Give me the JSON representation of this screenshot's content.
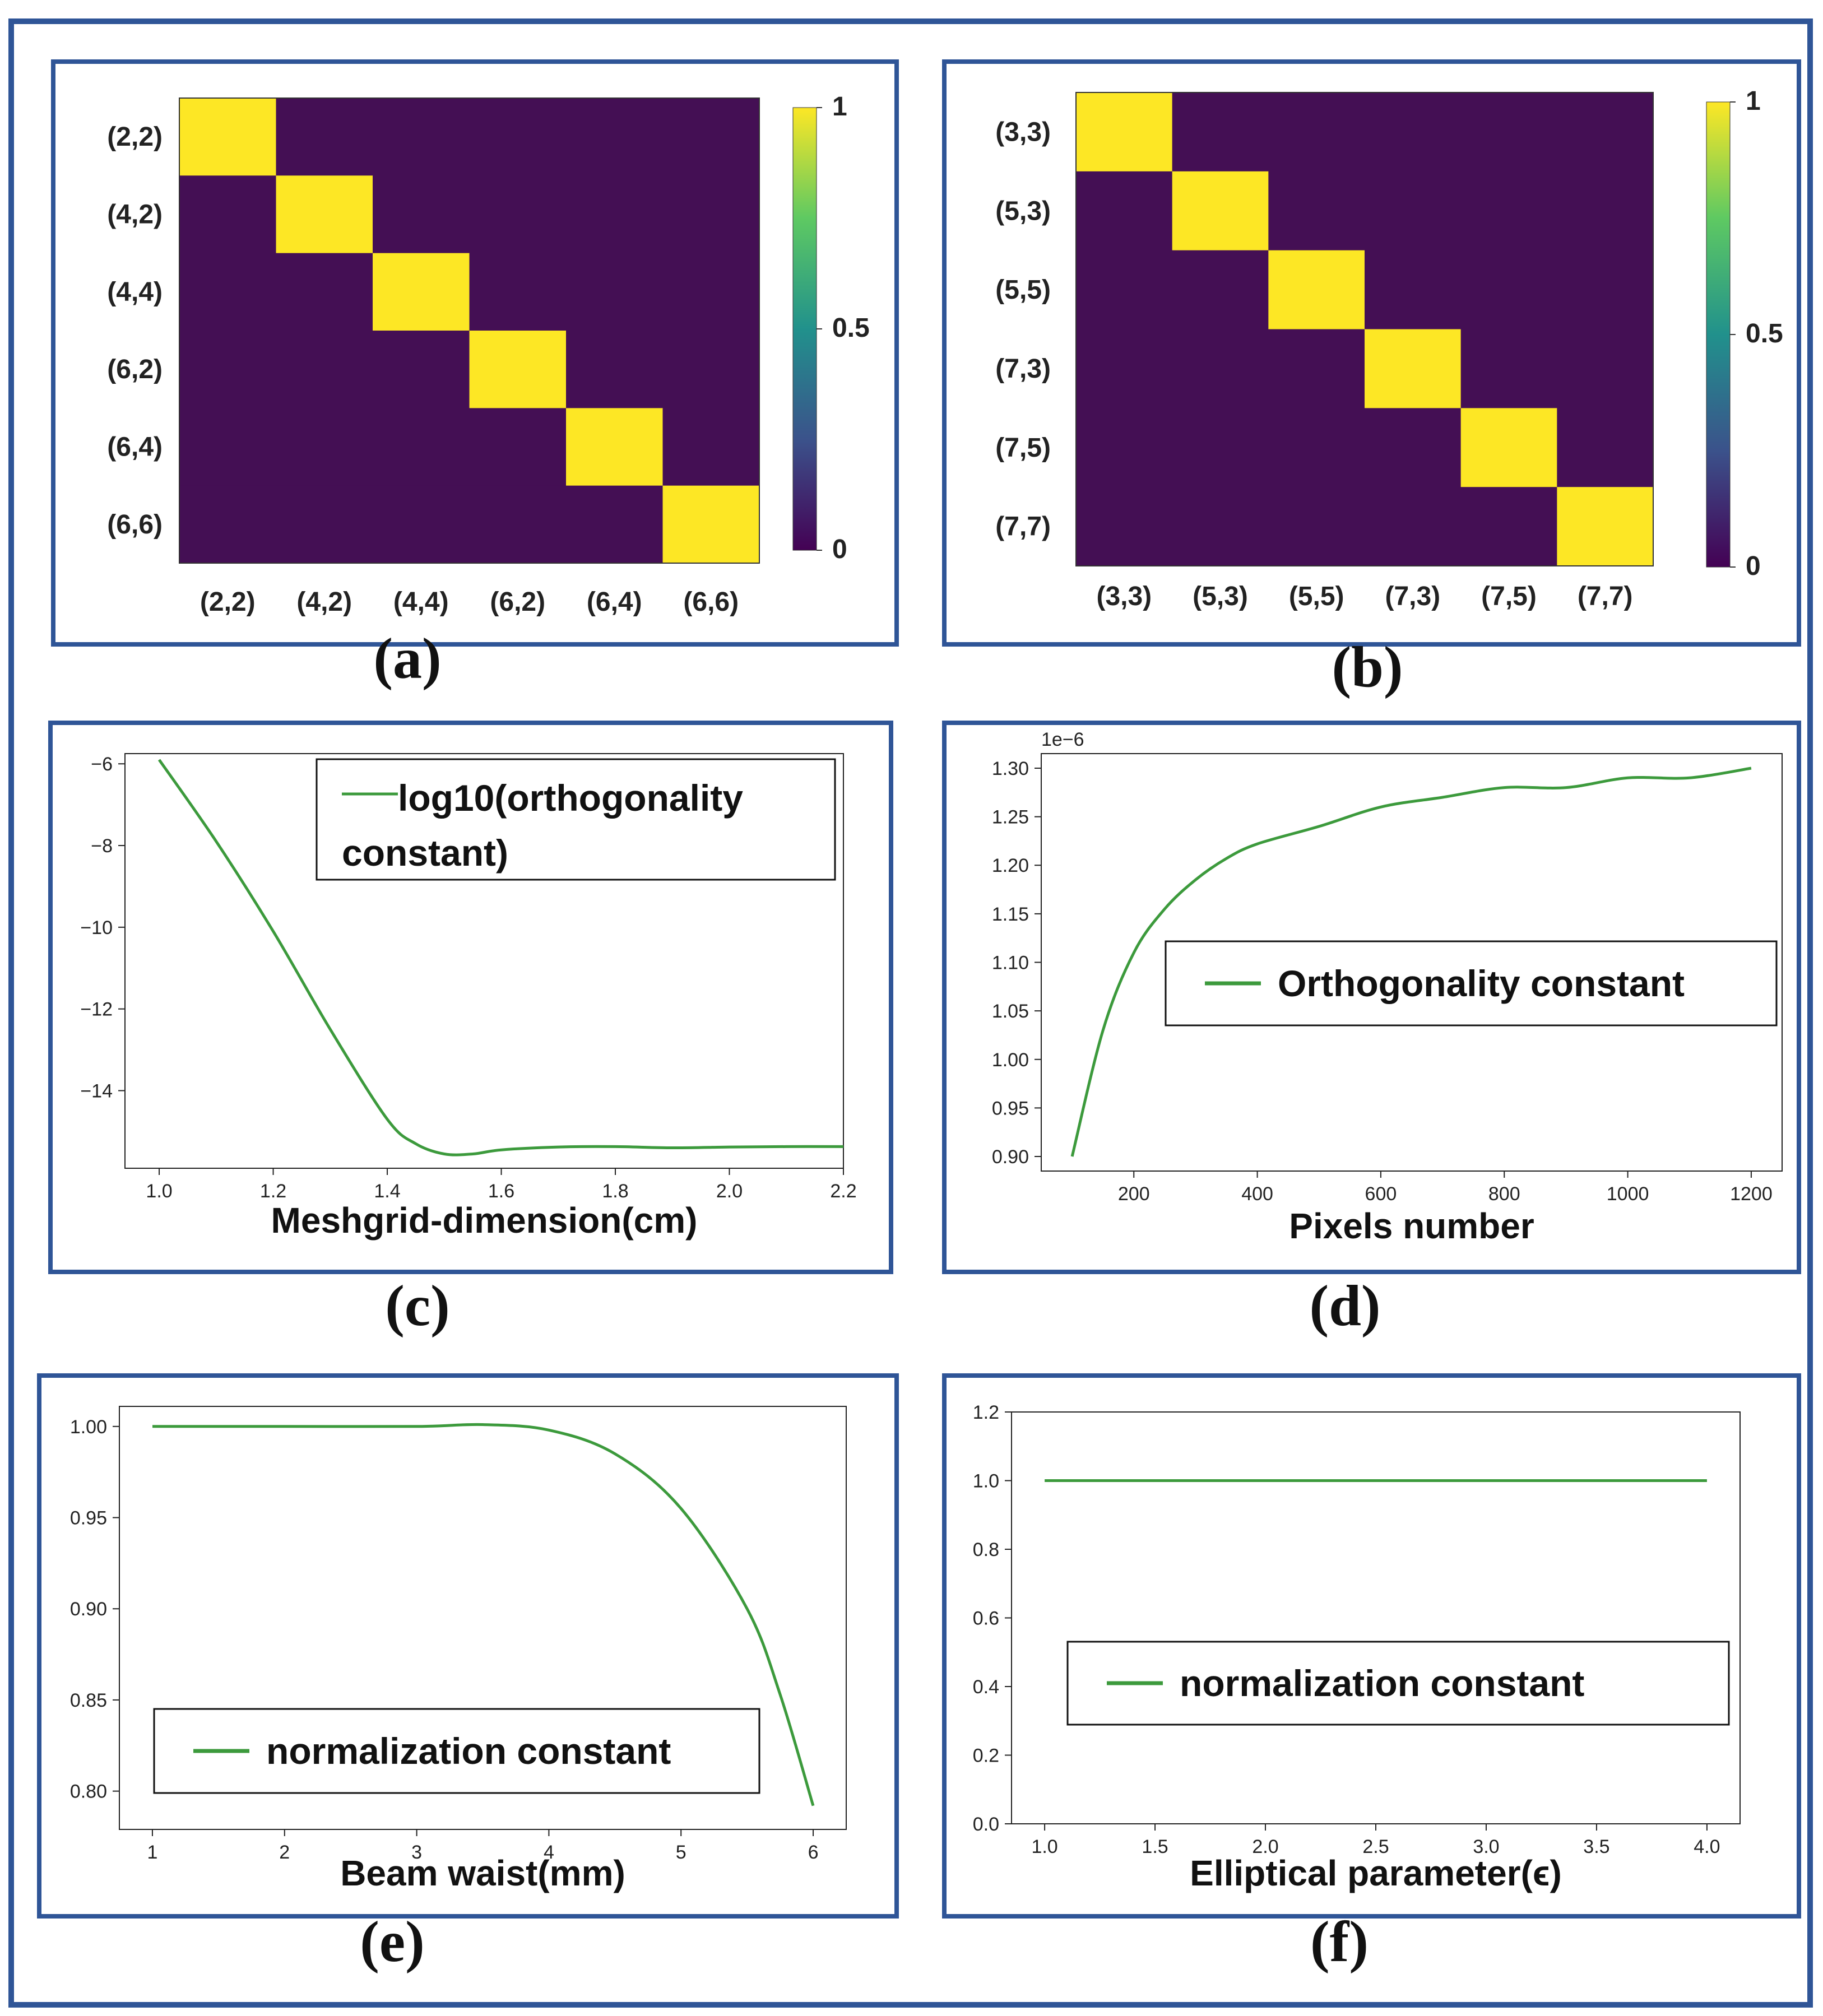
{
  "colors": {
    "frame": "#2f5597",
    "line": "#3c9a3c",
    "cell_on": "#fde725",
    "cell_off": "#440f54"
  },
  "colorbar_stops": [
    "#440154",
    "#3b528b",
    "#21918c",
    "#5ec962",
    "#fde725"
  ],
  "chart_data": [
    {
      "id": "a",
      "type": "heatmap",
      "label": "(a)",
      "row_labels": [
        "(2,2)",
        "(4,2)",
        "(4,4)",
        "(6,2)",
        "(6,4)",
        "(6,6)"
      ],
      "col_labels": [
        "(2,2)",
        "(4,2)",
        "(4,4)",
        "(6,2)",
        "(6,4)",
        "(6,6)"
      ],
      "values": [
        [
          1,
          0,
          0,
          0,
          0,
          0
        ],
        [
          0,
          1,
          0,
          0,
          0,
          0
        ],
        [
          0,
          0,
          1,
          0,
          0,
          0
        ],
        [
          0,
          0,
          0,
          1,
          0,
          0
        ],
        [
          0,
          0,
          0,
          0,
          1,
          0
        ],
        [
          0,
          0,
          0,
          0,
          0,
          1
        ]
      ],
      "colorbar_ticks": [
        "1",
        "0.5",
        "0"
      ],
      "vrange": [
        0,
        1
      ]
    },
    {
      "id": "b",
      "type": "heatmap",
      "label": "(b)",
      "row_labels": [
        "(3,3)",
        "(5,3)",
        "(5,5)",
        "(7,3)",
        "(7,5)",
        "(7,7)"
      ],
      "col_labels": [
        "(3,3)",
        "(5,3)",
        "(5,5)",
        "(7,3)",
        "(7,5)",
        "(7,7)"
      ],
      "values": [
        [
          1,
          0,
          0,
          0,
          0,
          0
        ],
        [
          0,
          1,
          0,
          0,
          0,
          0
        ],
        [
          0,
          0,
          1,
          0,
          0,
          0
        ],
        [
          0,
          0,
          0,
          1,
          0,
          0
        ],
        [
          0,
          0,
          0,
          0,
          1,
          0
        ],
        [
          0,
          0,
          0,
          0,
          0,
          1
        ]
      ],
      "colorbar_ticks": [
        "1",
        "0.5",
        "0"
      ],
      "vrange": [
        0,
        1
      ]
    },
    {
      "id": "c",
      "type": "line",
      "label": "(c)",
      "xlabel": "Meshgrid-dimension(cm)",
      "ylabel": "",
      "legend": [
        "log10(orthogonality",
        "constant)"
      ],
      "legend_position": "top-right",
      "xlim": [
        0.94,
        2.2
      ],
      "ylim": [
        -15.9,
        -5.75
      ],
      "xticks": [
        1.0,
        1.2,
        1.4,
        1.6,
        1.8,
        2.0,
        2.2
      ],
      "xtick_labels": [
        "1.0",
        "1.2",
        "1.4",
        "1.6",
        "1.8",
        "2.0",
        "2.2"
      ],
      "yticks": [
        -6,
        -8,
        -10,
        -12,
        -14
      ],
      "ytick_labels": [
        "−6",
        "−8",
        "−10",
        "−12",
        "−14"
      ],
      "x": [
        1.0,
        1.1,
        1.2,
        1.3,
        1.4,
        1.45,
        1.5,
        1.55,
        1.6,
        1.7,
        1.8,
        1.9,
        2.0,
        2.1,
        2.2
      ],
      "y": [
        -5.9,
        -7.9,
        -10.1,
        -12.5,
        -14.7,
        -15.3,
        -15.55,
        -15.55,
        -15.45,
        -15.38,
        -15.37,
        -15.4,
        -15.38,
        -15.37,
        -15.37
      ]
    },
    {
      "id": "d",
      "type": "line",
      "label": "(d)",
      "xlabel": "Pixels number",
      "ylabel": "",
      "offset_text": "1e−6",
      "legend": [
        "Orthogonality constant"
      ],
      "legend_position": "center-right",
      "xlim": [
        50,
        1250
      ],
      "ylim": [
        0.885,
        1.315
      ],
      "xticks": [
        200,
        400,
        600,
        800,
        1000,
        1200
      ],
      "xtick_labels": [
        "200",
        "400",
        "600",
        "800",
        "1000",
        "1200"
      ],
      "yticks": [
        0.9,
        0.95,
        1.0,
        1.05,
        1.1,
        1.15,
        1.2,
        1.25,
        1.3
      ],
      "ytick_labels": [
        "0.90",
        "0.95",
        "1.00",
        "1.05",
        "1.10",
        "1.15",
        "1.20",
        "1.25",
        "1.30"
      ],
      "x": [
        100,
        150,
        200,
        250,
        300,
        350,
        400,
        500,
        600,
        700,
        800,
        900,
        1000,
        1100,
        1200
      ],
      "y": [
        0.9,
        1.03,
        1.11,
        1.155,
        1.185,
        1.207,
        1.222,
        1.24,
        1.26,
        1.27,
        1.28,
        1.28,
        1.29,
        1.29,
        1.3
      ]
    },
    {
      "id": "e",
      "type": "line",
      "label": "(e)",
      "xlabel": "Beam waist(mm)",
      "ylabel": "",
      "legend": [
        "normalization constant"
      ],
      "legend_position": "lower-left",
      "xlim": [
        0.75,
        6.25
      ],
      "ylim": [
        0.779,
        1.011
      ],
      "xticks": [
        1,
        2,
        3,
        4,
        5,
        6
      ],
      "xtick_labels": [
        "1",
        "2",
        "3",
        "4",
        "5",
        "6"
      ],
      "yticks": [
        0.8,
        0.85,
        0.9,
        0.95,
        1.0
      ],
      "ytick_labels": [
        "0.80",
        "0.85",
        "0.90",
        "0.95",
        "1.00"
      ],
      "x": [
        1.0,
        2.0,
        3.0,
        3.5,
        4.0,
        4.5,
        5.0,
        5.5,
        5.75,
        6.0
      ],
      "y": [
        1.0,
        1.0,
        1.0,
        1.001,
        0.998,
        0.985,
        0.955,
        0.9,
        0.853,
        0.792
      ]
    },
    {
      "id": "f",
      "type": "line",
      "label": "(f)",
      "xlabel": "Elliptical parameter(ϵ)",
      "ylabel": "",
      "legend": [
        "normalization constant"
      ],
      "legend_position": "center",
      "xlim": [
        0.85,
        4.15
      ],
      "ylim": [
        0.0,
        1.2
      ],
      "xticks": [
        1.0,
        1.5,
        2.0,
        2.5,
        3.0,
        3.5,
        4.0
      ],
      "xtick_labels": [
        "1.0",
        "1.5",
        "2.0",
        "2.5",
        "3.0",
        "3.5",
        "4.0"
      ],
      "yticks": [
        0.0,
        0.2,
        0.4,
        0.6,
        0.8,
        1.0,
        1.2
      ],
      "ytick_labels": [
        "0.0",
        "0.2",
        "0.4",
        "0.6",
        "0.8",
        "1.0",
        "1.2"
      ],
      "x": [
        1.0,
        1.5,
        2.0,
        2.5,
        3.0,
        3.5,
        4.0
      ],
      "y": [
        1.0,
        1.0,
        1.0,
        1.0,
        1.0,
        1.0,
        1.0
      ]
    }
  ]
}
